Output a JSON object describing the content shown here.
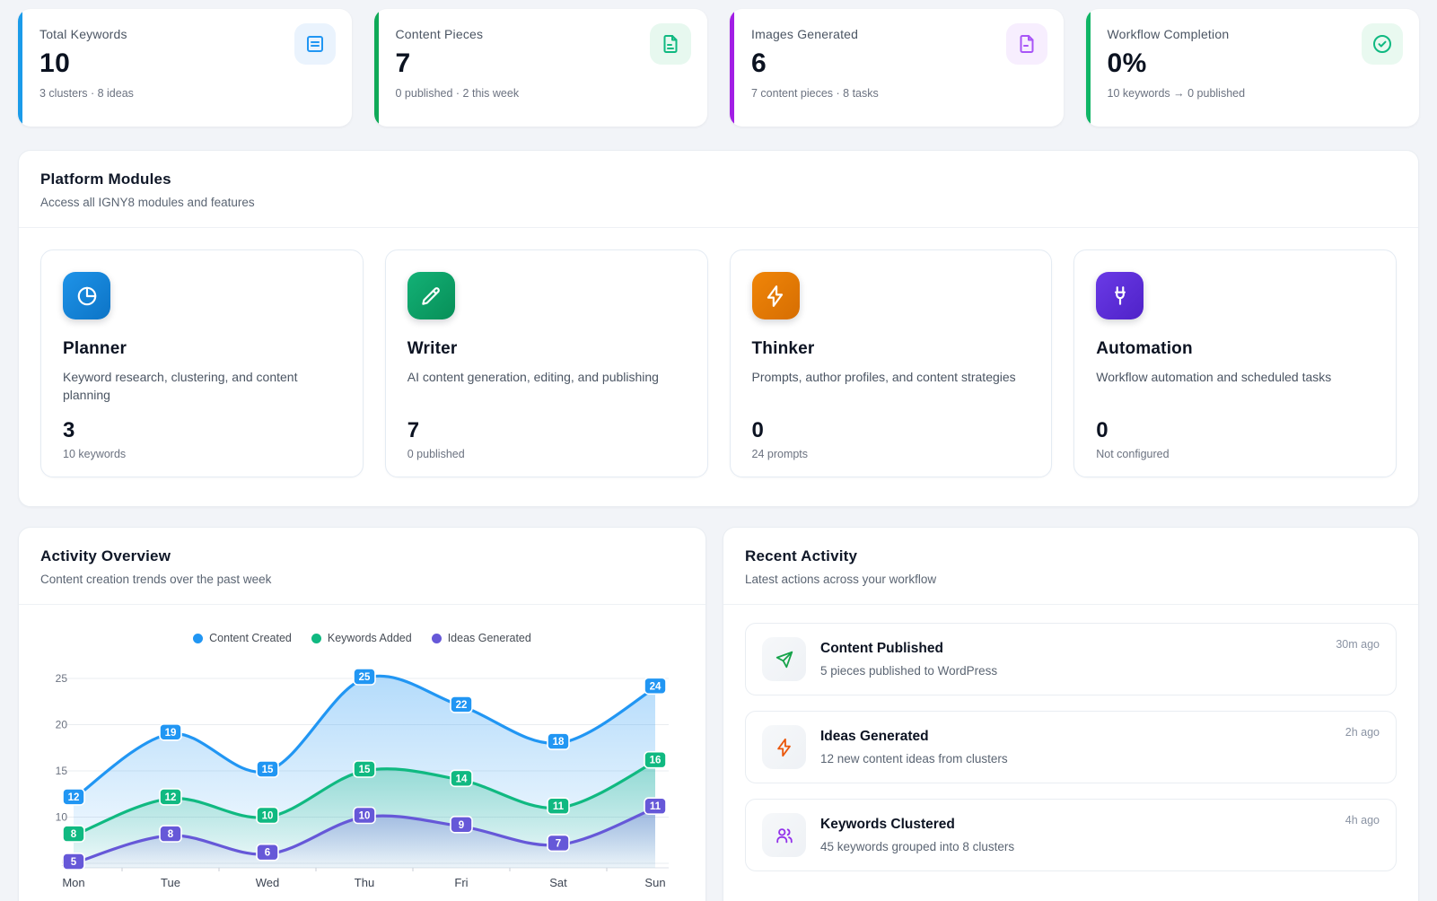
{
  "stats": [
    {
      "label": "Total Keywords",
      "value": "10",
      "sub": "3 clusters · 8 ideas",
      "accent": "#1b9be9",
      "icon": "list-icon"
    },
    {
      "label": "Content Pieces",
      "value": "7",
      "sub": "0 published · 2 this week",
      "accent": "#0fa958",
      "icon": "file-text-icon"
    },
    {
      "label": "Images Generated",
      "value": "6",
      "sub": "7 content pieces · 8 tasks",
      "accent": "#a21ee5",
      "icon": "file-image-icon"
    },
    {
      "label": "Workflow Completion",
      "value": "0%",
      "sub": "10 keywords → 0 published",
      "accent": "#10b566",
      "icon": "check-circle-icon"
    }
  ],
  "modules_section": {
    "title": "Platform Modules",
    "subtitle": "Access all IGNY8 modules and features",
    "cards": [
      {
        "name": "Planner",
        "description": "Keyword research, clustering, and content planning",
        "value": "3",
        "sub": "10 keywords",
        "icon": "pie-chart-icon",
        "color": "#1386d6"
      },
      {
        "name": "Writer",
        "description": "AI content generation, editing, and publishing",
        "value": "7",
        "sub": "0 published",
        "icon": "pencil-icon",
        "color": "#0ea468"
      },
      {
        "name": "Thinker",
        "description": "Prompts, author profiles, and content strategies",
        "value": "0",
        "sub": "24 prompts",
        "icon": "zap-icon",
        "color": "#e87b06"
      },
      {
        "name": "Automation",
        "description": "Workflow automation and scheduled tasks",
        "value": "0",
        "sub": "Not configured",
        "icon": "plug-icon",
        "color": "#5d2fd8"
      }
    ]
  },
  "activity_overview": {
    "title": "Activity Overview",
    "subtitle": "Content creation trends over the past week"
  },
  "chart_data": {
    "type": "area",
    "title": "Activity Overview",
    "x": [
      "Mon",
      "Tue",
      "Wed",
      "Thu",
      "Fri",
      "Sat",
      "Sun"
    ],
    "series": [
      {
        "name": "Content Created",
        "color": "#2196f3",
        "values": [
          12,
          19,
          15,
          25,
          22,
          18,
          24
        ]
      },
      {
        "name": "Keywords Added",
        "color": "#10b981",
        "values": [
          8,
          12,
          10,
          15,
          14,
          11,
          16
        ]
      },
      {
        "name": "Ideas Generated",
        "color": "#6658d8",
        "values": [
          5,
          8,
          6,
          10,
          9,
          7,
          11
        ]
      }
    ],
    "ylim": [
      5,
      25
    ],
    "yticks": [
      5,
      10,
      15,
      20,
      25
    ],
    "grid": true,
    "legend_position": "top",
    "data_labels": true
  },
  "recent_activity": {
    "title": "Recent Activity",
    "subtitle": "Latest actions across your workflow",
    "items": [
      {
        "title": "Content Published",
        "description": "5 pieces published to WordPress",
        "time": "30m ago",
        "icon": "send-icon",
        "color": "#16a34a"
      },
      {
        "title": "Ideas Generated",
        "description": "12 new content ideas from clusters",
        "time": "2h ago",
        "icon": "zap-icon",
        "color": "#ea580c"
      },
      {
        "title": "Keywords Clustered",
        "description": "45 keywords grouped into 8 clusters",
        "time": "4h ago",
        "icon": "users-icon",
        "color": "#9333ea"
      }
    ]
  }
}
